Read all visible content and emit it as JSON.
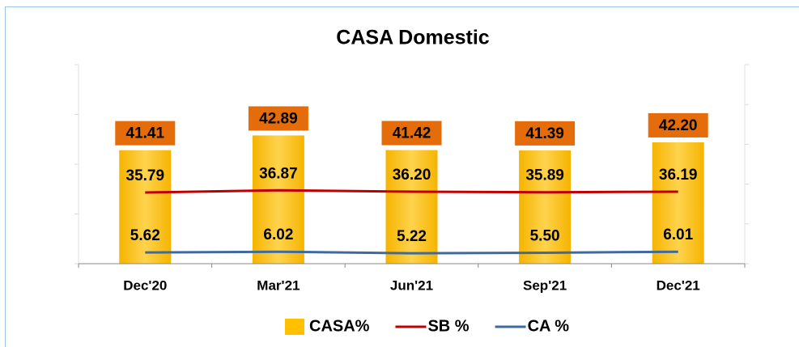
{
  "chart_data": {
    "type": "bar_line",
    "title": "CASA Domestic",
    "categories": [
      "Dec'20",
      "Mar'21",
      "Jun'21",
      "Sep'21",
      "Dec'21"
    ],
    "series": [
      {
        "name": "CASA%",
        "type": "bar",
        "color": "#ffc000",
        "label_color": "#e46c0a",
        "values": [
          41.41,
          42.89,
          41.42,
          41.39,
          42.2
        ],
        "value_labels": [
          "41.41",
          "42.89",
          "41.42",
          "41.39",
          "42.20"
        ]
      },
      {
        "name": "SB %",
        "type": "line",
        "axis": "y2",
        "color": "#c00000",
        "values": [
          35.79,
          36.87,
          36.2,
          35.89,
          36.19
        ],
        "value_labels": [
          "35.79",
          "36.87",
          "36.20",
          "35.89",
          "36.19"
        ]
      },
      {
        "name": "CA %",
        "type": "line",
        "axis": "y2",
        "color": "#3f6a9e",
        "values": [
          5.62,
          6.02,
          5.22,
          5.5,
          6.01
        ],
        "value_labels": [
          "5.62",
          "6.02",
          "5.22",
          "5.50",
          "6.01"
        ]
      }
    ],
    "ylim": [
      30,
      50
    ],
    "yticks": [
      30,
      35,
      40,
      45,
      50
    ],
    "y2lim": [
      0,
      100
    ],
    "y2ticks": [
      0,
      20,
      40,
      60,
      80,
      100
    ],
    "legend": "bottom"
  }
}
